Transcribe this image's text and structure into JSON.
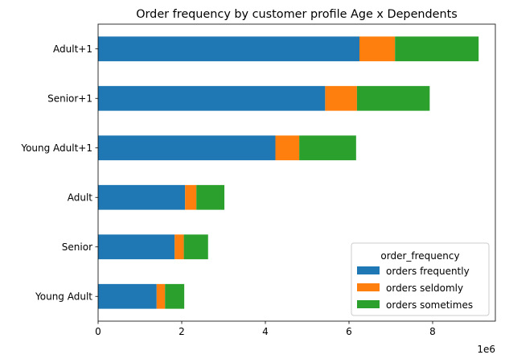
{
  "chart_data": {
    "type": "bar",
    "orientation": "horizontal",
    "stacked": true,
    "title": "Order frequency by customer profile Age x Dependents",
    "xlabel": "",
    "ylabel": "",
    "x_offset_text": "1e6",
    "xlim": [
      0,
      9500000
    ],
    "xticks": [
      0,
      2000000,
      4000000,
      6000000,
      8000000
    ],
    "xtick_labels": [
      "0",
      "2",
      "4",
      "6",
      "8"
    ],
    "categories": [
      "Adult+1",
      "Senior+1",
      "Young Adult+1",
      "Adult ",
      "Senior ",
      "Young Adult"
    ],
    "legend": {
      "title": "order_frequency",
      "placement": "lower right"
    },
    "grid": false,
    "series": [
      {
        "name": "orders frequently",
        "color": "#1f77b4",
        "values": [
          6250000,
          5430000,
          4240000,
          2080000,
          1830000,
          1400000
        ]
      },
      {
        "name": "orders seldomly",
        "color": "#ff7f0e",
        "values": [
          850000,
          760000,
          570000,
          270000,
          220000,
          200000
        ]
      },
      {
        "name": "orders sometimes",
        "color": "#2ca02c",
        "values": [
          2000000,
          1740000,
          1360000,
          670000,
          580000,
          460000
        ]
      }
    ]
  }
}
